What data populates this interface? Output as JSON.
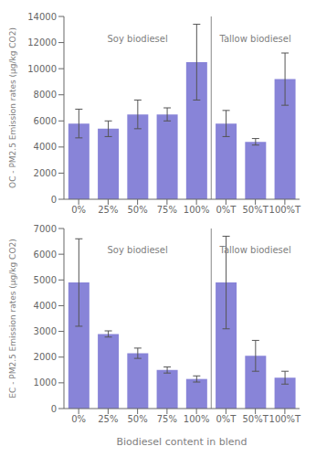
{
  "chart_data": [
    {
      "type": "bar",
      "categories": [
        "0%",
        "25%",
        "50%",
        "75%",
        "100%",
        "0%T",
        "50%T",
        "100%T"
      ],
      "values": [
        5800,
        5400,
        6500,
        6500,
        10500,
        5800,
        4400,
        9200
      ],
      "errors": [
        1100,
        600,
        1100,
        500,
        2900,
        1000,
        250,
        2000
      ],
      "ylabel": "OC - PM2.5 Emission rates (μg/kg CO2)",
      "ylim": [
        0,
        14000
      ],
      "yticks": [
        0,
        2000,
        4000,
        6000,
        8000,
        10000,
        12000,
        14000
      ],
      "annotations": [
        {
          "text": "Soy biodiesel",
          "from": "0%",
          "to": "100%"
        },
        {
          "text": "Tallow biodiesel",
          "from": "0%T",
          "to": "100%T"
        }
      ],
      "color": "#8884d8",
      "grid": false
    },
    {
      "type": "bar",
      "categories": [
        "0%",
        "25%",
        "50%",
        "75%",
        "100%",
        "0%T",
        "50%T",
        "100%T"
      ],
      "values": [
        4900,
        2900,
        2150,
        1500,
        1150,
        4900,
        2050,
        1200
      ],
      "errors": [
        1700,
        120,
        200,
        120,
        120,
        1800,
        600,
        250
      ],
      "ylabel": "EC - PM2.5 Emission rates (μg/kg CO2)",
      "xlabel": "Biodiesel content in blend",
      "ylim": [
        0,
        7000
      ],
      "yticks": [
        0,
        1000,
        2000,
        3000,
        4000,
        5000,
        6000,
        7000
      ],
      "annotations": [
        {
          "text": "Soy biodiesel",
          "from": "0%",
          "to": "100%"
        },
        {
          "text": "Tallow biodiesel",
          "from": "0%T",
          "to": "100%T"
        }
      ],
      "color": "#8884d8",
      "grid": false
    }
  ]
}
